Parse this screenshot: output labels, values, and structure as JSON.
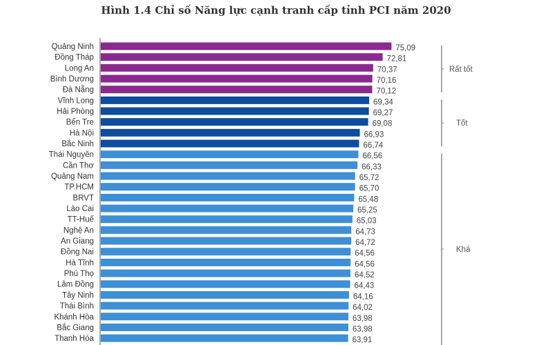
{
  "chart_data": {
    "type": "bar",
    "orientation": "horizontal",
    "title": "Hình 1.4 Chỉ số Năng lực cạnh tranh cấp tỉnh PCI năm 2020",
    "xlim": [
      0,
      80
    ],
    "grid": false,
    "categories": [
      "Quảng Ninh",
      "Đồng Tháp",
      "Long An",
      "Bình Dương",
      "Đà Nẵng",
      "Vĩnh Long",
      "Hải Phòng",
      "Bến Tre",
      "Hà Nội",
      "Bắc Ninh",
      "Thái Nguyên",
      "Cần Thơ",
      "Quảng Nam",
      "TP.HCM",
      "BRVT",
      "Lào Cai",
      "TT-Huế",
      "Nghệ An",
      "An Giang",
      "Đồng Nai",
      "Hà Tĩnh",
      "Phú Thọ",
      "Lâm Đồng",
      "Tây Ninh",
      "Thái Bình",
      "Khánh Hòa",
      "Bắc Giang",
      "Thanh Hóa"
    ],
    "values": [
      75.09,
      72.81,
      70.37,
      70.16,
      70.12,
      69.34,
      69.27,
      69.08,
      66.93,
      66.74,
      66.56,
      66.33,
      65.72,
      65.7,
      65.48,
      65.25,
      65.03,
      64.73,
      64.72,
      64.56,
      64.56,
      64.52,
      64.43,
      64.16,
      64.02,
      63.98,
      63.98,
      63.91
    ],
    "value_labels": [
      "75,09",
      "72,81",
      "70,37",
      "70,16",
      "70,12",
      "69,34",
      "69,27",
      "69,08",
      "66,93",
      "66,74",
      "66,56",
      "66,33",
      "65,72",
      "65,70",
      "65,48",
      "65,25",
      "65,03",
      "64,73",
      "64,72",
      "64,56",
      "64,56",
      "64,52",
      "64,43",
      "64,16",
      "64,02",
      "63,98",
      "63,98",
      "63,91"
    ],
    "groups": [
      {
        "label": "Rất tốt",
        "from": 0,
        "to": 4,
        "color": "#8b2a8e"
      },
      {
        "label": "Tốt",
        "from": 5,
        "to": 9,
        "color": "#0d4c9e"
      },
      {
        "label": "Khá",
        "from": 10,
        "to": 28,
        "color": "#3e8fd5"
      }
    ]
  }
}
